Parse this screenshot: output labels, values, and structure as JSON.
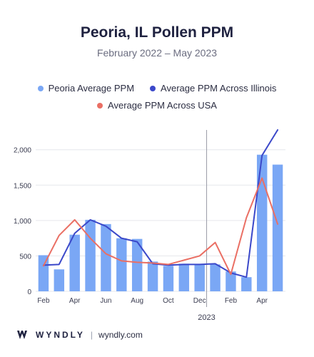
{
  "chart_data": {
    "type": "bar",
    "title": "Peoria, IL Pollen PPM",
    "subtitle": "February 2022 – May 2023",
    "categories": [
      "Feb",
      "Mar",
      "Apr",
      "May",
      "Jun",
      "Jul",
      "Aug",
      "Sep",
      "Oct",
      "Nov",
      "Dec",
      "Jan",
      "Feb",
      "Mar",
      "Apr",
      "May"
    ],
    "x_tick_labels": [
      "Feb",
      "",
      "Apr",
      "",
      "Jun",
      "",
      "Aug",
      "",
      "Oct",
      "",
      "Dec",
      "",
      "Feb",
      "",
      "Apr",
      ""
    ],
    "year_marker": {
      "label": "2023",
      "before_index": 11
    },
    "ylim": [
      0,
      2300
    ],
    "yticks": [
      0,
      500,
      1000,
      1500,
      2000
    ],
    "ytick_labels": [
      "0",
      "500",
      "1,000",
      "1,500",
      "2,000"
    ],
    "grid": true,
    "legend_position": "top",
    "series": [
      {
        "name": "Peoria Average PPM",
        "kind": "bar",
        "color": "#7aa7f5",
        "values": [
          510,
          310,
          800,
          1010,
          950,
          750,
          740,
          420,
          360,
          390,
          380,
          380,
          280,
          200,
          1930,
          1790
        ]
      },
      {
        "name": "Average PPM Across Illinois",
        "kind": "line",
        "color": "#3b48c9",
        "values": [
          370,
          380,
          820,
          1010,
          920,
          750,
          700,
          390,
          370,
          380,
          380,
          390,
          260,
          200,
          1920,
          2280
        ]
      },
      {
        "name": "Average PPM Across USA",
        "kind": "line",
        "color": "#ea6f64",
        "values": [
          360,
          790,
          1010,
          750,
          530,
          430,
          410,
          400,
          380,
          440,
          500,
          690,
          240,
          1040,
          1600,
          950
        ]
      }
    ]
  },
  "footer": {
    "brand": "WYNDLY",
    "separator": "|",
    "site": "wyndly.com"
  }
}
